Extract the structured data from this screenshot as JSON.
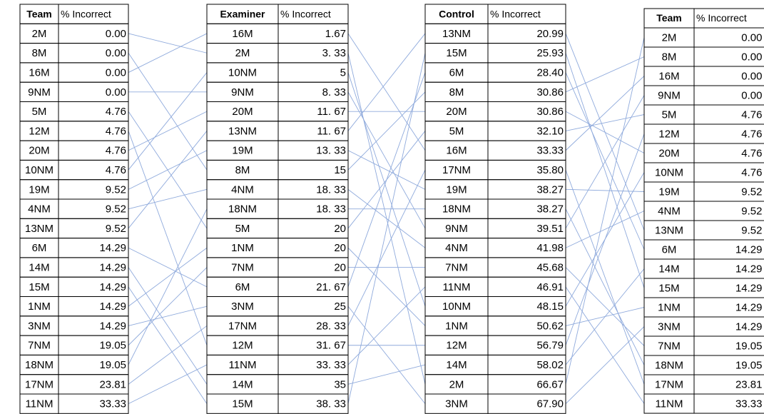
{
  "tables": [
    {
      "headers": [
        "Team",
        "% Incorrect"
      ],
      "rows": [
        [
          "2M",
          "0.00"
        ],
        [
          "8M",
          "0.00"
        ],
        [
          "16M",
          "0.00"
        ],
        [
          "9NM",
          "0.00"
        ],
        [
          "5M",
          "4.76"
        ],
        [
          "12M",
          "4.76"
        ],
        [
          "20M",
          "4.76"
        ],
        [
          "10NM",
          "4.76"
        ],
        [
          "19M",
          "9.52"
        ],
        [
          "4NM",
          "9.52"
        ],
        [
          "13NM",
          "9.52"
        ],
        [
          "6M",
          "14.29"
        ],
        [
          "14M",
          "14.29"
        ],
        [
          "15M",
          "14.29"
        ],
        [
          "1NM",
          "14.29"
        ],
        [
          "3NM",
          "14.29"
        ],
        [
          "7NM",
          "19.05"
        ],
        [
          "18NM",
          "19.05"
        ],
        [
          "17NM",
          "23.81"
        ],
        [
          "11NM",
          "33.33"
        ]
      ]
    },
    {
      "headers": [
        "Examiner",
        "% Incorrect"
      ],
      "rows": [
        [
          "16M",
          "1.67"
        ],
        [
          "2M",
          "3. 33"
        ],
        [
          "10NM",
          "5"
        ],
        [
          "9NM",
          "8. 33"
        ],
        [
          "20M",
          "11. 67"
        ],
        [
          "13NM",
          "11. 67"
        ],
        [
          "19M",
          "13. 33"
        ],
        [
          "8M",
          "15"
        ],
        [
          "4NM",
          "18. 33"
        ],
        [
          "18NM",
          "18. 33"
        ],
        [
          "5M",
          "20"
        ],
        [
          "1NM",
          "20"
        ],
        [
          "7NM",
          "20"
        ],
        [
          "6M",
          "21. 67"
        ],
        [
          "3NM",
          "25"
        ],
        [
          "17NM",
          "28. 33"
        ],
        [
          "12M",
          "31. 67"
        ],
        [
          "11NM",
          "33. 33"
        ],
        [
          "14M",
          "35"
        ],
        [
          "15M",
          "38. 33"
        ]
      ]
    },
    {
      "headers": [
        "Control",
        "% Incorrect"
      ],
      "rows": [
        [
          "13NM",
          "20.99"
        ],
        [
          "15M",
          "25.93"
        ],
        [
          "6M",
          "28.40"
        ],
        [
          "8M",
          "30.86"
        ],
        [
          "20M",
          "30.86"
        ],
        [
          "5M",
          "32.10"
        ],
        [
          "16M",
          "33.33"
        ],
        [
          "17NM",
          "35.80"
        ],
        [
          "19M",
          "38.27"
        ],
        [
          "18NM",
          "38.27"
        ],
        [
          "9NM",
          "39.51"
        ],
        [
          "4NM",
          "41.98"
        ],
        [
          "7NM",
          "45.68"
        ],
        [
          "11NM",
          "46.91"
        ],
        [
          "10NM",
          "48.15"
        ],
        [
          "1NM",
          "50.62"
        ],
        [
          "12M",
          "56.79"
        ],
        [
          "14M",
          "58.02"
        ],
        [
          "2M",
          "66.67"
        ],
        [
          "3NM",
          "67.90"
        ]
      ]
    },
    {
      "headers": [
        "Team",
        "% Incorrect"
      ],
      "rows": [
        [
          "2M",
          "0.00"
        ],
        [
          "8M",
          "0.00"
        ],
        [
          "16M",
          "0.00"
        ],
        [
          "9NM",
          "0.00"
        ],
        [
          "5M",
          "4.76"
        ],
        [
          "12M",
          "4.76"
        ],
        [
          "20M",
          "4.76"
        ],
        [
          "10NM",
          "4.76"
        ],
        [
          "19M",
          "9.52"
        ],
        [
          "4NM",
          "9.52"
        ],
        [
          "13NM",
          "9.52"
        ],
        [
          "6M",
          "14.29"
        ],
        [
          "14M",
          "14.29"
        ],
        [
          "15M",
          "14.29"
        ],
        [
          "1NM",
          "14.29"
        ],
        [
          "3NM",
          "14.29"
        ],
        [
          "7NM",
          "19.05"
        ],
        [
          "18NM",
          "19.05"
        ],
        [
          "17NM",
          "23.81"
        ],
        [
          "11NM",
          "33.33"
        ]
      ]
    }
  ]
}
